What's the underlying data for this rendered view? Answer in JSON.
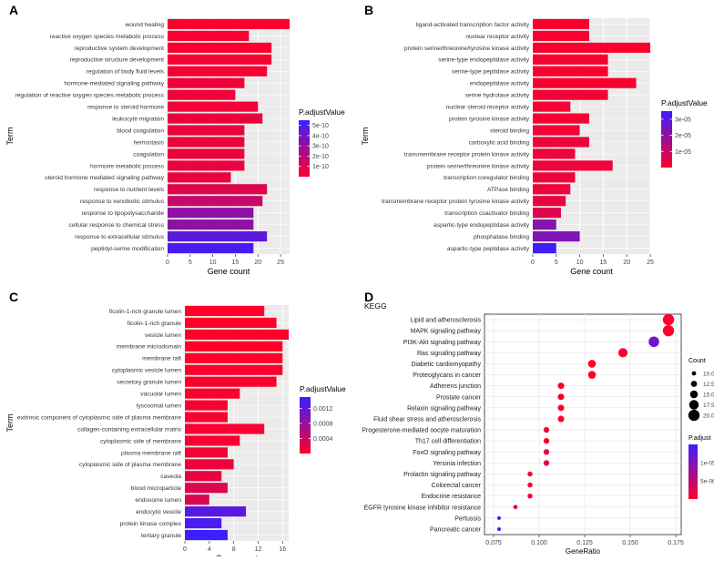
{
  "figure_panels": [
    "A",
    "B",
    "C",
    "D"
  ],
  "chart_data": [
    {
      "panel": "A",
      "type": "bar",
      "orientation": "horizontal",
      "xlabel": "Gene count",
      "ylabel": "Term",
      "xlim": [
        0,
        27
      ],
      "xticks": [
        0,
        5,
        10,
        15,
        20,
        25
      ],
      "legend": {
        "title": "P.adjustValue",
        "ticks": [
          "5e-10",
          "4e-10",
          "3e-10",
          "2e-10",
          "1e-10"
        ],
        "min": 0,
        "max": 5.5e-10
      },
      "categories": [
        "wound healing",
        "reactive oxygen species metabolic process",
        "reproductive system development",
        "reproductive structure development",
        "regulation of body fluid levels",
        "hormone-mediated signaling pathway",
        "regulation of reactive oxygen species metabolic process",
        "response to steroid hormone",
        "leukocyte migration",
        "blood coagulation",
        "hemostasis",
        "coagulation",
        "hormone metabolic process",
        "steroid hormone mediated signaling pathway",
        "response to nutrient levels",
        "response to xenobiotic stimulus",
        "response to lipopolysaccharide",
        "cellular response to chemical stress",
        "response to extracellular stimulus",
        "peptidyl-serine modification"
      ],
      "values": [
        27,
        18,
        23,
        23,
        22,
        17,
        15,
        20,
        21,
        17,
        17,
        17,
        17,
        14,
        22,
        21,
        19,
        19,
        22,
        19
      ],
      "padj": [
        1e-11,
        2e-11,
        2e-11,
        2e-11,
        3e-11,
        4e-11,
        4e-11,
        4e-11,
        5e-11,
        5e-11,
        5e-11,
        5e-11,
        6e-11,
        6e-11,
        9e-11,
        1.6e-10,
        3.2e-10,
        3.2e-10,
        4.6e-10,
        5.2e-10
      ]
    },
    {
      "panel": "B",
      "type": "bar",
      "orientation": "horizontal",
      "xlabel": "Gene count",
      "ylabel": "Term",
      "xlim": [
        0,
        25
      ],
      "xticks": [
        0,
        5,
        10,
        15,
        20,
        25
      ],
      "legend": {
        "title": "P.adjustValue",
        "ticks": [
          "3e-05",
          "2e-05",
          "1e-05"
        ],
        "min": 0,
        "max": 3.5e-05
      },
      "categories": [
        "ligand-activated transcription factor activity",
        "nuclear receptor activity",
        "protein serine/threonine/tyrosine kinase activity",
        "serine-type endopeptidase activity",
        "serine-type peptidase activity",
        "endopeptidase activity",
        "serine hydrolase activity",
        "nuclear steroid receptor activity",
        "protein tyrosine kinase activity",
        "steroid binding",
        "carboxylic acid binding",
        "transmembrane receptor protein kinase activity",
        "protein serine/threonine kinase activity",
        "transcription coregulator binding",
        "ATPase binding",
        "transmembrane receptor protein tyrosine kinase activity",
        "transcription coactivator binding",
        "aspartic-type endopeptidase activity",
        "phosphatase binding",
        "aspartic-type peptidase activity"
      ],
      "values": [
        12,
        12,
        25,
        16,
        16,
        22,
        16,
        8,
        12,
        10,
        12,
        9,
        17,
        9,
        8,
        7,
        6,
        5,
        10,
        5
      ],
      "padj": [
        1e-06,
        1e-06,
        1e-06,
        1e-06,
        1e-06,
        1e-06,
        2e-06,
        2e-06,
        2e-06,
        2e-06,
        3e-06,
        3e-06,
        3e-06,
        3e-06,
        3e-06,
        4e-06,
        6e-06,
        2.2e-05,
        2.3e-05,
        3.4e-05
      ]
    },
    {
      "panel": "C",
      "type": "bar",
      "orientation": "horizontal",
      "xlabel": "Gene count",
      "ylabel": "Term",
      "xlim": [
        0,
        17
      ],
      "xticks": [
        0,
        4,
        8,
        12,
        16
      ],
      "legend": {
        "title": "P.adjustValue",
        "ticks": [
          "0.0012",
          "0.0008",
          "0.0004"
        ],
        "min": 0,
        "max": 0.0015
      },
      "categories": [
        "ficolin-1-rich granule lumen",
        "ficolin-1-rich granule",
        "vesicle lumen",
        "membrane microdomain",
        "membrane raft",
        "cytoplasmic vesicle lumen",
        "secretory granule lumen",
        "vacuolar lumen",
        "lysosomal lumen",
        "extrinsic component of cytoplasmic side of plasma membrane",
        "collagen-containing extracellular matrix",
        "cytoplasmic side of membrane",
        "plasma membrane raft",
        "cytoplasmic side of plasma membrane",
        "caveola",
        "blood microparticle",
        "endosome lumen",
        "endocytic vesicle",
        "protein kinase complex",
        "tertiary granule"
      ],
      "values": [
        13,
        15,
        17,
        16,
        16,
        16,
        15,
        9,
        7,
        7,
        13,
        9,
        7,
        8,
        6,
        7,
        4,
        10,
        6,
        7
      ],
      "padj": [
        1e-05,
        1e-05,
        1e-05,
        1e-05,
        1e-05,
        2e-05,
        2e-05,
        4e-05,
        5e-05,
        5e-05,
        6e-05,
        8e-05,
        0.0001,
        0.00012,
        0.00016,
        0.00026,
        0.00028,
        0.0013,
        0.0014,
        0.0015
      ]
    },
    {
      "panel": "D",
      "type": "scatter",
      "title": "KEGG",
      "xlabel": "GeneRatio",
      "xlim": [
        0.07,
        0.178
      ],
      "xticks": [
        "0.075",
        "0.100",
        "0.125",
        "0.150",
        "0.175"
      ],
      "xtick_values": [
        0.075,
        0.1,
        0.125,
        0.15,
        0.175
      ],
      "size_legend": {
        "title": "Count",
        "labels": [
          "10.0",
          "12.5",
          "15.0",
          "17.5",
          "20.0"
        ],
        "values": [
          10,
          12.5,
          15,
          17.5,
          20
        ]
      },
      "color_legend": {
        "title": "P.adjust",
        "ticks": [
          "1e-05",
          "5e-06"
        ],
        "min": 0,
        "max": 1.5e-05
      },
      "categories": [
        "Lipid and atherosclerosis",
        "MAPK signaling pathway",
        "PI3K-Akt signaling pathway",
        "Ras signaling pathway",
        "Diabetic cardiomyopathy",
        "Proteoglycans in cancer",
        "Adherens junction",
        "Prostate cancer",
        "Relaxin signaling pathway",
        "Fluid shear stress and atherosclerosis",
        "Progesterone-mediated oocyte maturation",
        "Th17 cell differentiation",
        "FoxO signaling pathway",
        "Yersinia infection",
        "Prolactin signaling pathway",
        "Colorectal cancer",
        "Endocrine resistance",
        "EGFR tyrosine kinase inhibitor resistance",
        "Pertussis",
        "Pancreatic cancer"
      ],
      "x": [
        0.171,
        0.171,
        0.163,
        0.146,
        0.129,
        0.129,
        0.112,
        0.112,
        0.112,
        0.112,
        0.104,
        0.104,
        0.104,
        0.104,
        0.095,
        0.095,
        0.095,
        0.087,
        0.078,
        0.078
      ],
      "count": [
        20,
        20,
        19,
        17,
        15,
        15,
        13,
        13,
        13,
        13,
        12,
        12,
        12,
        12,
        11,
        11,
        11,
        10,
        9,
        9
      ],
      "padj": [
        1e-07,
        1e-07,
        1.1e-05,
        2e-07,
        2e-07,
        2e-07,
        3e-07,
        3e-07,
        3e-07,
        3e-07,
        5e-07,
        5e-07,
        1.5e-06,
        2.5e-06,
        7e-07,
        7e-07,
        9e-07,
        2.5e-06,
        1.5e-05,
        1.5e-05
      ]
    }
  ]
}
